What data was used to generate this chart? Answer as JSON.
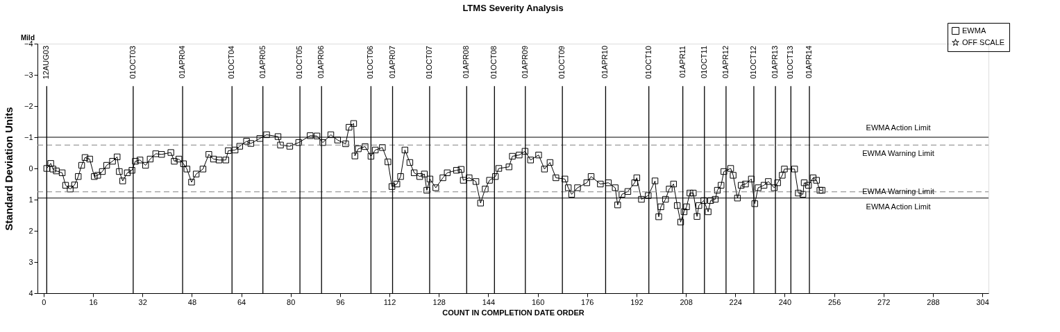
{
  "chart_data": {
    "type": "line",
    "title": "LTMS Severity Analysis",
    "xlabel": "COUNT IN COMPLETION DATE ORDER",
    "ylabel": "Standard Deviation Units",
    "annotations": [
      "Mild"
    ],
    "xlim": [
      -2,
      306
    ],
    "xticks": [
      0,
      16,
      32,
      48,
      64,
      80,
      96,
      112,
      128,
      144,
      160,
      176,
      192,
      208,
      224,
      240,
      256,
      272,
      288,
      304
    ],
    "ylim": [
      4,
      -4
    ],
    "yticks": [
      -4,
      -3,
      -2,
      -1,
      0,
      1,
      2,
      3,
      4
    ],
    "grid": false,
    "legend": "top right",
    "marker": "square",
    "line_style": "solid",
    "series": [
      {
        "name": "EWMA",
        "color": "#000000",
        "x": [
          1,
          2.3,
          3,
          4.1,
          6,
          7.1,
          8.6,
          10,
          11.2,
          12.3,
          13.4,
          14.9,
          16.4,
          17.5,
          19,
          20.4,
          22.3,
          23.8,
          24.5,
          25.6,
          27.1,
          28.6,
          29.7,
          31.2,
          33,
          34.5,
          36.3,
          38.2,
          41.2,
          42.3,
          43.8,
          45.3,
          46.4,
          47.9,
          49.4,
          51.6,
          53.5,
          55,
          56.8,
          59,
          59.8,
          62,
          63.5,
          65.7,
          67.1,
          70,
          72.2,
          75.9,
          76.7,
          79.7,
          82.6,
          86.3,
          88.5,
          90.4,
          93,
          95.2,
          97.8,
          98.9,
          100.4,
          100.8,
          101.9,
          104.1,
          106,
          107.4,
          109.7,
          111.5,
          112.8,
          114.4,
          115.6,
          117,
          118.6,
          120,
          121.8,
          123.3,
          124.1,
          125.1,
          127,
          129.3,
          130.7,
          133.7,
          135.2,
          135.9,
          137.8,
          140,
          141.5,
          143,
          144.4,
          146.3,
          147.4,
          150.7,
          151.8,
          154,
          155.9,
          157.7,
          160.3,
          162.2,
          164,
          165.9,
          168.8,
          169.9,
          171,
          172.9,
          175.9,
          177.3,
          180.3,
          182.9,
          185.1,
          185.9,
          187.3,
          189.2,
          191.4,
          192.1,
          193.6,
          195.8,
          198,
          199.2,
          199.9,
          201.4,
          202.6,
          204,
          205.2,
          206.3,
          207.4,
          208.2,
          209.3,
          210.4,
          211.6,
          212.2,
          213.8,
          215.2,
          216,
          217.5,
          218.2,
          219.4,
          220.3,
          222.5,
          223.3,
          224.7,
          225.9,
          227.3,
          229.2,
          230.3,
          231.4,
          233.3,
          234.7,
          236.6,
          237.7,
          239.2,
          239.9,
          243.2,
          244.4,
          245.9,
          246.3,
          247.7,
          249.2,
          250.3,
          251.4,
          252.1
        ],
        "values": [
          0,
          -0.16,
          0.02,
          0.08,
          0.14,
          0.54,
          0.66,
          0.53,
          0.26,
          -0.1,
          -0.35,
          -0.3,
          0.26,
          0.22,
          0.1,
          -0.1,
          -0.23,
          -0.37,
          0.1,
          0.4,
          0.14,
          0.06,
          -0.23,
          -0.27,
          -0.1,
          -0.3,
          -0.47,
          -0.45,
          -0.51,
          -0.23,
          -0.3,
          -0.15,
          0.02,
          0.44,
          0.18,
          0.02,
          -0.45,
          -0.3,
          -0.27,
          -0.27,
          -0.57,
          -0.59,
          -0.71,
          -0.87,
          -0.8,
          -0.96,
          -1.08,
          -1.02,
          -0.75,
          -0.71,
          -0.83,
          -1.05,
          -1.04,
          -0.83,
          -1.08,
          -0.91,
          -0.79,
          -1.32,
          -1.44,
          -0.4,
          -0.63,
          -0.7,
          -0.39,
          -0.59,
          -0.67,
          -0.21,
          0.58,
          0.5,
          0.26,
          -0.59,
          -0.19,
          0.14,
          0.26,
          0.18,
          0.7,
          0.34,
          0.62,
          0.3,
          0.14,
          0.06,
          0.03,
          0.38,
          0.3,
          0.42,
          1.11,
          0.66,
          0.38,
          0.26,
          0,
          -0.05,
          -0.39,
          -0.43,
          -0.55,
          -0.27,
          -0.43,
          0.02,
          -0.19,
          0.3,
          0.34,
          0.62,
          0.83,
          0.62,
          0.46,
          0.26,
          0.5,
          0.46,
          0.62,
          1.17,
          0.83,
          0.74,
          0.46,
          0.3,
          0.99,
          0.87,
          0.4,
          1.55,
          1.23,
          0.99,
          0.66,
          0.5,
          1.19,
          1.72,
          1.39,
          1.23,
          0.79,
          0.79,
          1.54,
          1.19,
          1.03,
          1.39,
          1.03,
          0.99,
          0.7,
          0.54,
          0.1,
          0,
          0.22,
          0.95,
          0.54,
          0.5,
          0.34,
          1.13,
          0.62,
          0.54,
          0.42,
          0.62,
          0.46,
          0.22,
          0.02,
          0.02,
          0.79,
          0.83,
          0.46,
          0.54,
          0.3,
          0.38,
          0.7,
          0.7
        ]
      },
      {
        "name": "OFF SCALE",
        "color": "#000000",
        "marker": "star"
      }
    ],
    "ref_lines": [
      {
        "axis": "y",
        "value": -1,
        "label": "EWMA Action Limit",
        "color": "#000000",
        "line_style": "solid"
      },
      {
        "axis": "y",
        "value": -0.75,
        "label": "EWMA Warning Limit",
        "color": "#808080",
        "line_style": "dashed"
      },
      {
        "axis": "y",
        "value": 0.75,
        "label": "EWMA Warning Limit",
        "color": "#808080",
        "line_style": "dashed"
      },
      {
        "axis": "y",
        "value": 0.95,
        "label": "EWMA Action Limit",
        "color": "#000000",
        "line_style": "solid"
      },
      {
        "axis": "x",
        "value": 1,
        "label": "12AUG03",
        "color": "#000000"
      },
      {
        "axis": "x",
        "value": 29,
        "label": "01OCT03",
        "color": "#000000"
      },
      {
        "axis": "x",
        "value": 45,
        "label": "01APR04",
        "color": "#000000"
      },
      {
        "axis": "x",
        "value": 61,
        "label": "01OCT04",
        "color": "#000000"
      },
      {
        "axis": "x",
        "value": 71,
        "label": "01APR05",
        "color": "#000000"
      },
      {
        "axis": "x",
        "value": 83,
        "label": "01OCT05",
        "color": "#000000"
      },
      {
        "axis": "x",
        "value": 90,
        "label": "01APR06",
        "color": "#000000"
      },
      {
        "axis": "x",
        "value": 106,
        "label": "01OCT06",
        "color": "#000000"
      },
      {
        "axis": "x",
        "value": 113,
        "label": "01APR07",
        "color": "#000000"
      },
      {
        "axis": "x",
        "value": 125,
        "label": "01OCT07",
        "color": "#000000"
      },
      {
        "axis": "x",
        "value": 137,
        "label": "01APR08",
        "color": "#000000"
      },
      {
        "axis": "x",
        "value": 146,
        "label": "01OCT08",
        "color": "#000000"
      },
      {
        "axis": "x",
        "value": 156,
        "label": "01APR09",
        "color": "#000000"
      },
      {
        "axis": "x",
        "value": 168,
        "label": "01OCT09",
        "color": "#000000"
      },
      {
        "axis": "x",
        "value": 182,
        "label": "01APR10",
        "color": "#000000"
      },
      {
        "axis": "x",
        "value": 196,
        "label": "01OCT10",
        "color": "#000000"
      },
      {
        "axis": "x",
        "value": 207,
        "label": "01APR11",
        "color": "#000000"
      },
      {
        "axis": "x",
        "value": 214,
        "label": "01OCT11",
        "color": "#000000"
      },
      {
        "axis": "x",
        "value": 221,
        "label": "01APR12",
        "color": "#000000"
      },
      {
        "axis": "x",
        "value": 230,
        "label": "01OCT12",
        "color": "#000000"
      },
      {
        "axis": "x",
        "value": 237,
        "label": "01APR13",
        "color": "#000000"
      },
      {
        "axis": "x",
        "value": 242,
        "label": "01OCT13",
        "color": "#000000"
      },
      {
        "axis": "x",
        "value": 248,
        "label": "01APR14",
        "color": "#000000"
      }
    ]
  }
}
